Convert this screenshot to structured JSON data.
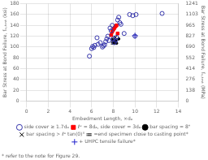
{
  "chart_data": {
    "type": "scatter",
    "xlabel": "Embedment Length, ×dₐ",
    "ylabel": "Bar Stress at Bond Failure, fᵤ,ₜₑₛₜ (ksi)",
    "y2label": "Bar Stress at Bond Failure, fᵤ,ₜₑₛₜ (MPa)",
    "annotations": [
      "* refer to the note for Figure 29."
    ],
    "xlim": [
      0,
      14
    ],
    "xticks": [
      0,
      2,
      4,
      6,
      8,
      10,
      12,
      14
    ],
    "ylim": [
      0,
      180
    ],
    "yticks": [
      0,
      20,
      40,
      60,
      80,
      100,
      120,
      140,
      160,
      180
    ],
    "y2lim": [
      0,
      1241
    ],
    "y2ticks": [
      0,
      138,
      276,
      414,
      552,
      690,
      827,
      965,
      1103,
      1241
    ],
    "grid": true,
    "legend": "bottom",
    "series": [
      {
        "name": "side cover ≥ 1.7dₐ",
        "color": "#3333aa",
        "marker": "open_circle",
        "x": [
          5.8,
          6.0,
          6.1,
          6.2,
          6.3,
          6.5,
          6.6,
          6.8,
          7.0,
          7.1,
          7.2,
          7.3,
          7.4,
          7.5,
          7.6,
          7.7,
          7.8,
          7.9,
          8.0,
          8.1,
          8.2,
          8.3,
          8.4,
          8.5,
          8.6,
          8.7,
          9.0,
          9.5,
          9.8,
          10.0,
          10.1,
          12.5
        ],
        "values": [
          83,
          97,
          101,
          99,
          103,
          117,
          105,
          108,
          100,
          102,
          104,
          110,
          115,
          120,
          112,
          135,
          130,
          140,
          115,
          108,
          112,
          118,
          150,
          155,
          145,
          142,
          125,
          160,
          158,
          120,
          160,
          162
        ]
      },
      {
        "name": "ℓᵉ = 8dₐ, side cover = 3dₐ",
        "color": "red",
        "marker": "square",
        "x": [
          7.8,
          7.9,
          8.0,
          8.1,
          8.2,
          8.3,
          8.4
        ],
        "values": [
          122,
          128,
          132,
          135,
          138,
          140,
          125
        ]
      },
      {
        "name": "bar spacing = 8\"",
        "color": "black",
        "marker": "dot",
        "x": [
          7.9,
          8.0,
          8.1,
          8.2,
          8.3,
          8.5
        ],
        "values": [
          114,
          108,
          110,
          112,
          107,
          115
        ]
      },
      {
        "name": "bar spacing > ℓᵉ tan(0)°",
        "color": "black",
        "marker": "x",
        "x": [
          8.0,
          8.1,
          8.2
        ],
        "values": [
          113,
          116,
          118
        ]
      },
      {
        "name": "=end specimen close to casting point*",
        "color": "black",
        "marker": "equals",
        "x": [
          8.0,
          8.1
        ],
        "values": [
          107,
          109
        ]
      },
      {
        "name": "+ UHPC tensile failure*",
        "color": "#2222cc",
        "marker": "plus",
        "x": [
          10.0
        ],
        "values": [
          121
        ]
      }
    ]
  }
}
